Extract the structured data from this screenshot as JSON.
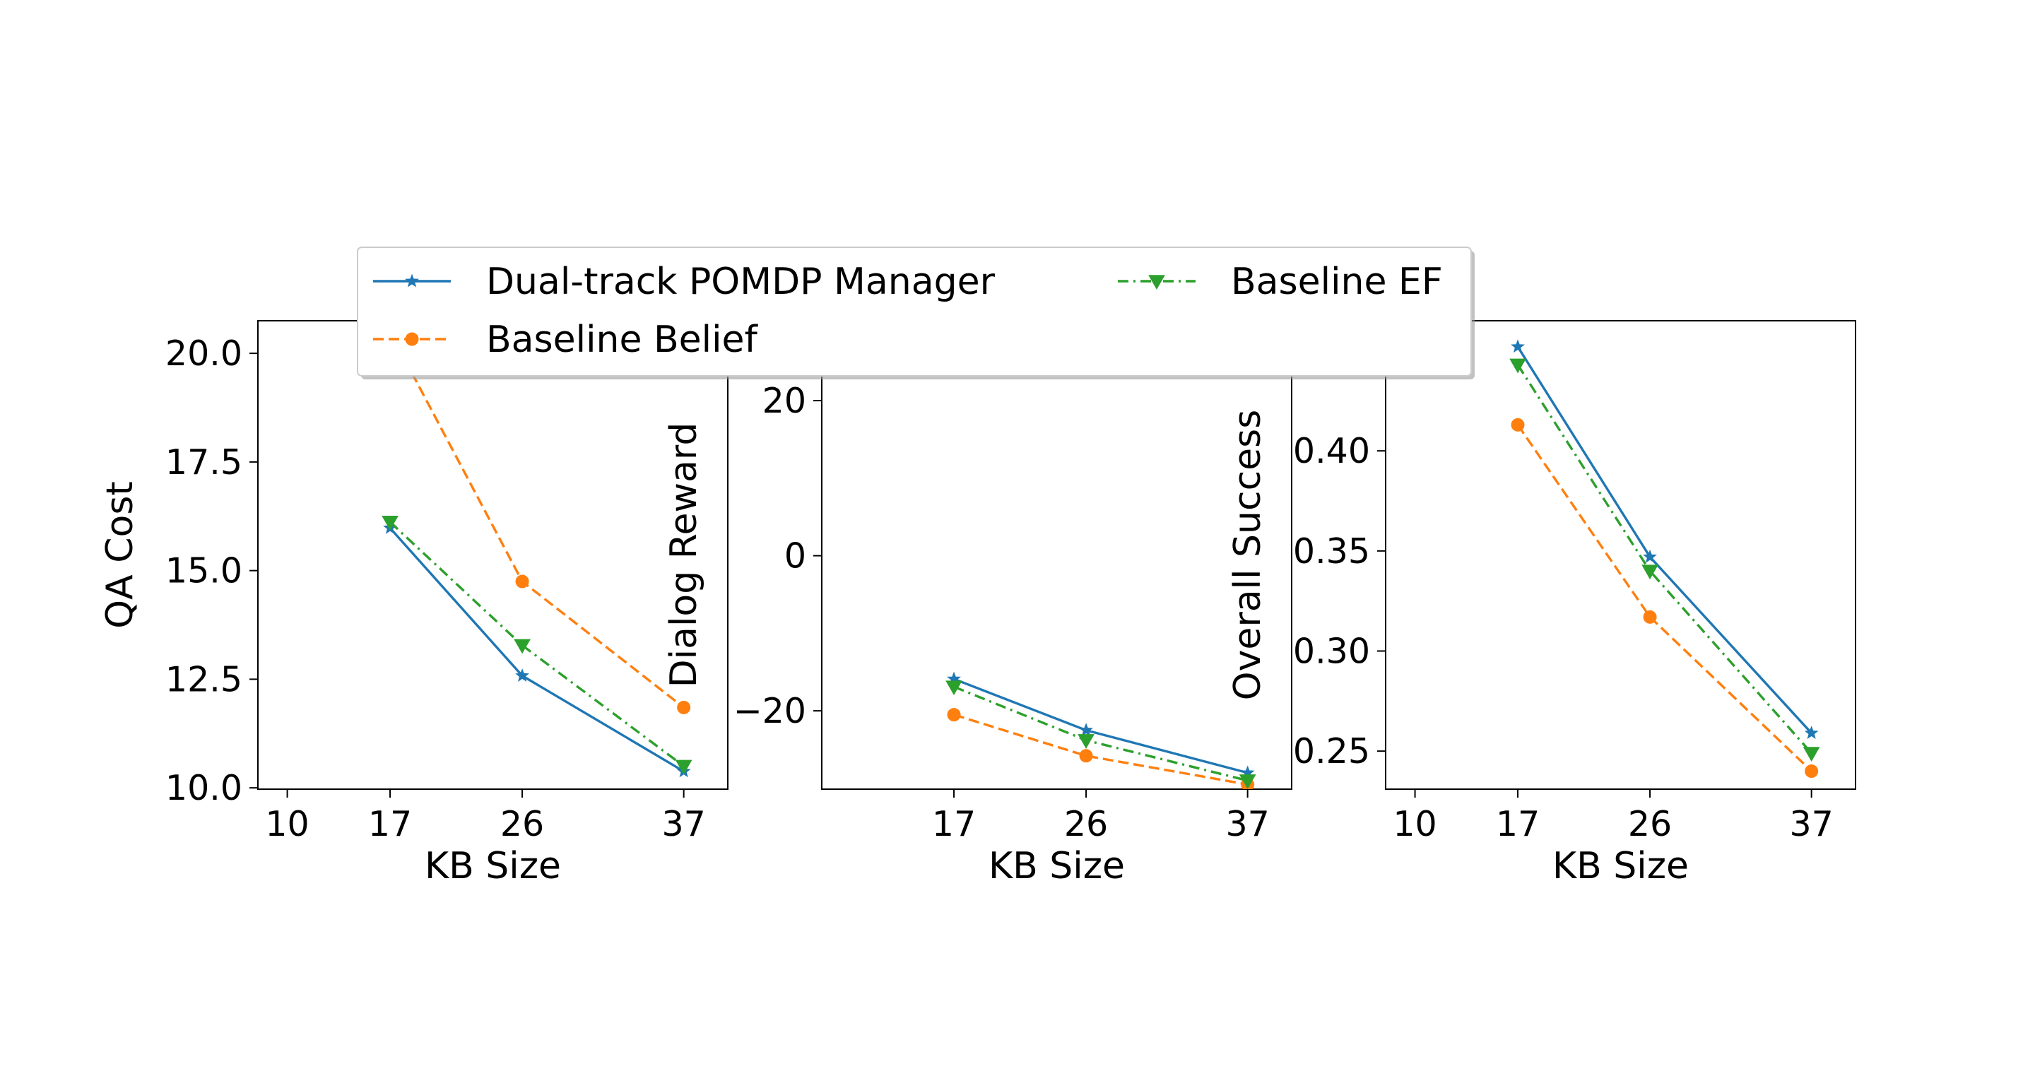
{
  "colors": {
    "dual": "#1f77b4",
    "belief": "#ff7f0e",
    "ef": "#2ca02c"
  },
  "legend": {
    "items": [
      {
        "series": "Dual-track POMDP Manager",
        "color": "#1f77b4",
        "dash": "solid",
        "marker": "star"
      },
      {
        "series": "Baseline Belief",
        "color": "#ff7f0e",
        "dash": "dashed",
        "marker": "circle"
      },
      {
        "series": "Baseline EF",
        "color": "#2ca02c",
        "dash": "dashdot",
        "marker": "triangle-down"
      }
    ]
  },
  "chart_data": [
    {
      "type": "line",
      "xlabel": "KB Size",
      "ylabel": "QA Cost",
      "x_ticks": [
        10,
        17,
        26,
        37
      ],
      "y_ticks": [
        "10.0",
        "12.5",
        "15.0",
        "17.5",
        "20.0"
      ],
      "xlim": [
        8,
        40
      ],
      "ylim": [
        9.97,
        20.75
      ],
      "series": [
        {
          "name": "Dual-track POMDP Manager",
          "x": [
            17,
            26,
            37
          ],
          "y": [
            15.98,
            12.58,
            10.38
          ]
        },
        {
          "name": "Baseline Belief",
          "x": [
            17,
            26,
            37
          ],
          "y": [
            20.5,
            14.75,
            11.85
          ]
        },
        {
          "name": "Baseline EF",
          "x": [
            17,
            26,
            37
          ],
          "y": [
            16.12,
            13.28,
            10.5
          ]
        }
      ]
    },
    {
      "type": "line",
      "xlabel": "KB Size",
      "ylabel": "Dialog Reward",
      "x_ticks": [
        17,
        26,
        37
      ],
      "y_ticks": [
        "−20",
        "0",
        "20"
      ],
      "xlim": [
        8,
        40
      ],
      "ylim": [
        -30.1,
        30.3
      ],
      "series": [
        {
          "name": "Dual-track POMDP Manager",
          "x": [
            17,
            26,
            37
          ],
          "y": [
            -15.9,
            -22.5,
            -28.0
          ]
        },
        {
          "name": "Baseline Belief",
          "x": [
            17,
            26,
            37
          ],
          "y": [
            -20.5,
            -25.8,
            -29.5
          ]
        },
        {
          "name": "Baseline EF",
          "x": [
            17,
            26,
            37
          ],
          "y": [
            -16.9,
            -23.8,
            -29.0
          ]
        }
      ]
    },
    {
      "type": "line",
      "xlabel": "KB Size",
      "ylabel": "Overall Success",
      "x_ticks": [
        10,
        17,
        26,
        37
      ],
      "y_ticks": [
        "0.25",
        "0.30",
        "0.35",
        "0.40"
      ],
      "xlim": [
        8,
        40
      ],
      "ylim": [
        0.231,
        0.465
      ],
      "series": [
        {
          "name": "Dual-track POMDP Manager",
          "x": [
            17,
            26,
            37
          ],
          "y": [
            0.452,
            0.347,
            0.259
          ]
        },
        {
          "name": "Baseline Belief",
          "x": [
            17,
            26,
            37
          ],
          "y": [
            0.413,
            0.317,
            0.24
          ]
        },
        {
          "name": "Baseline EF",
          "x": [
            17,
            26,
            37
          ],
          "y": [
            0.443,
            0.34,
            0.249
          ]
        }
      ]
    }
  ]
}
